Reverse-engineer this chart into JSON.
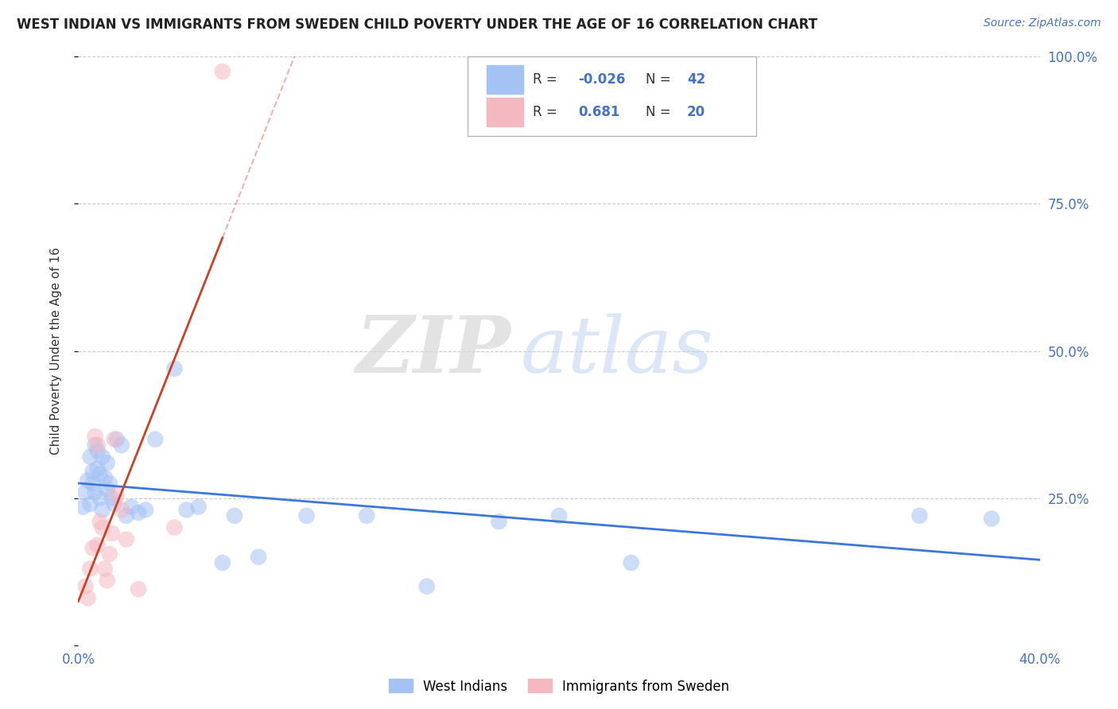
{
  "title": "WEST INDIAN VS IMMIGRANTS FROM SWEDEN CHILD POVERTY UNDER THE AGE OF 16 CORRELATION CHART",
  "source": "Source: ZipAtlas.com",
  "ylabel": "Child Poverty Under the Age of 16",
  "r_blue": -0.026,
  "r_pink": 0.681,
  "n_blue": 42,
  "n_pink": 20,
  "xlim": [
    0.0,
    0.4
  ],
  "ylim": [
    0.0,
    1.0
  ],
  "xticks": [
    0.0,
    0.1,
    0.2,
    0.3,
    0.4
  ],
  "xtick_labels": [
    "0.0%",
    "",
    "",
    "",
    "40.0%"
  ],
  "yticks": [
    0.0,
    0.25,
    0.5,
    0.75,
    1.0
  ],
  "ytick_labels_right": [
    "",
    "25.0%",
    "50.0%",
    "75.0%",
    "100.0%"
  ],
  "color_blue": "#a4c2f4",
  "color_pink": "#f4b8c1",
  "line_blue": "#3c78d8",
  "line_pink": "#cc4125",
  "line_dashed_color": "#e06666",
  "watermark_zip": "ZIP",
  "watermark_atlas": "atlas",
  "wi_x": [
    0.002,
    0.003,
    0.004,
    0.005,
    0.005,
    0.006,
    0.006,
    0.007,
    0.007,
    0.008,
    0.008,
    0.009,
    0.009,
    0.01,
    0.01,
    0.011,
    0.012,
    0.012,
    0.013,
    0.014,
    0.015,
    0.016,
    0.018,
    0.02,
    0.022,
    0.025,
    0.028,
    0.032,
    0.04,
    0.045,
    0.05,
    0.06,
    0.065,
    0.075,
    0.095,
    0.12,
    0.145,
    0.175,
    0.2,
    0.23,
    0.35,
    0.38
  ],
  "wi_y": [
    0.235,
    0.26,
    0.28,
    0.32,
    0.24,
    0.275,
    0.295,
    0.26,
    0.34,
    0.3,
    0.33,
    0.25,
    0.29,
    0.32,
    0.23,
    0.285,
    0.265,
    0.31,
    0.275,
    0.25,
    0.24,
    0.35,
    0.34,
    0.22,
    0.235,
    0.225,
    0.23,
    0.35,
    0.47,
    0.23,
    0.235,
    0.14,
    0.22,
    0.15,
    0.22,
    0.22,
    0.1,
    0.21,
    0.22,
    0.14,
    0.22,
    0.215
  ],
  "sw_x": [
    0.003,
    0.004,
    0.005,
    0.006,
    0.007,
    0.008,
    0.008,
    0.009,
    0.01,
    0.011,
    0.012,
    0.013,
    0.014,
    0.015,
    0.016,
    0.018,
    0.02,
    0.025,
    0.04,
    0.06
  ],
  "sw_y": [
    0.1,
    0.08,
    0.13,
    0.165,
    0.355,
    0.34,
    0.17,
    0.21,
    0.2,
    0.13,
    0.11,
    0.155,
    0.19,
    0.35,
    0.255,
    0.23,
    0.18,
    0.095,
    0.2,
    0.975
  ]
}
